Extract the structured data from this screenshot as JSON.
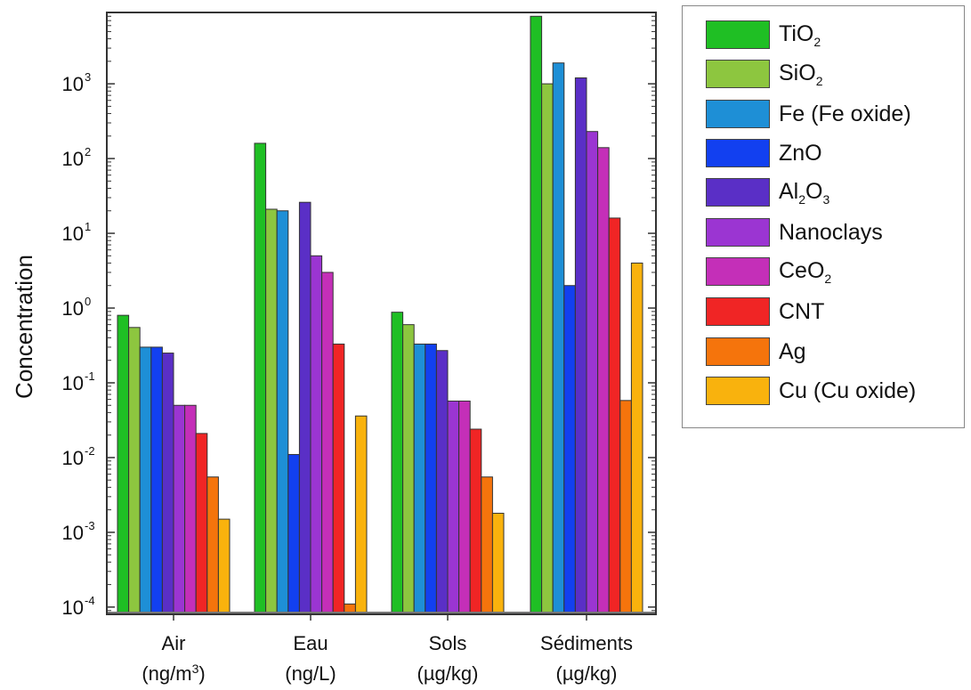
{
  "chart_data": {
    "type": "bar",
    "ylabel": "Concentration",
    "yscale": "log",
    "ylim": [
      8e-05,
      9000
    ],
    "y_tick_labels": [
      "10",
      "10",
      "10",
      "10",
      "10",
      "10",
      "10",
      "10"
    ],
    "y_tick_exponents": [
      "-4",
      "-3",
      "-2",
      "-1",
      "0",
      "1",
      "2",
      "3"
    ],
    "categories": [
      {
        "name": "Air",
        "unit": "(ng/m",
        "unit_sup": "3",
        "unit_end": ")"
      },
      {
        "name": "Eau",
        "unit": "(ng/L)",
        "unit_sup": "",
        "unit_end": ""
      },
      {
        "name": "Sols",
        "unit": "(µg/kg)",
        "unit_sup": "",
        "unit_end": ""
      },
      {
        "name": "Sédiments",
        "unit": "(µg/kg)",
        "unit_sup": "",
        "unit_end": ""
      }
    ],
    "series": [
      {
        "name": "TiO2",
        "label_main": "TiO",
        "label_sub": "2",
        "label_main2": "",
        "label_sub2": "",
        "color": "#1fbf24",
        "values": [
          0.8,
          160,
          0.88,
          8000
        ]
      },
      {
        "name": "SiO2",
        "label_main": "SiO",
        "label_sub": "2",
        "label_main2": "",
        "label_sub2": "",
        "color": "#8dc63f",
        "values": [
          0.55,
          21,
          0.6,
          1000
        ]
      },
      {
        "name": "Fe (Fe oxide)",
        "label_main": "Fe (Fe oxide)",
        "label_sub": "",
        "label_main2": "",
        "label_sub2": "",
        "color": "#1e8fd6",
        "values": [
          0.3,
          20,
          0.33,
          1900
        ]
      },
      {
        "name": "ZnO",
        "label_main": "ZnO",
        "label_sub": "",
        "label_main2": "",
        "label_sub2": "",
        "color": "#1240f0",
        "values": [
          0.3,
          0.011,
          0.33,
          2
        ]
      },
      {
        "name": "Al2O3",
        "label_main": "Al",
        "label_sub": "2",
        "label_main2": "O",
        "label_sub2": "3",
        "color": "#5a2fc6",
        "values": [
          0.25,
          26,
          0.27,
          1200
        ]
      },
      {
        "name": "Nanoclays",
        "label_main": "Nanoclays",
        "label_sub": "",
        "label_main2": "",
        "label_sub2": "",
        "color": "#9b35d2",
        "values": [
          0.05,
          5,
          0.057,
          230
        ]
      },
      {
        "name": "CeO2",
        "label_main": "CeO",
        "label_sub": "2",
        "label_main2": "",
        "label_sub2": "",
        "color": "#c42fb8",
        "values": [
          0.05,
          3,
          0.057,
          140
        ]
      },
      {
        "name": "CNT",
        "label_main": "CNT",
        "label_sub": "",
        "label_main2": "",
        "label_sub2": "",
        "color": "#f02525",
        "values": [
          0.021,
          0.33,
          0.024,
          16
        ]
      },
      {
        "name": "Ag",
        "label_main": "Ag",
        "label_sub": "",
        "label_main2": "",
        "label_sub2": "",
        "color": "#f5740c",
        "values": [
          0.0055,
          0.00011,
          0.0055,
          0.058
        ]
      },
      {
        "name": "Cu (Cu oxide)",
        "label_main": "Cu (Cu oxide)",
        "label_sub": "",
        "label_main2": "",
        "label_sub2": "",
        "color": "#f9b20d",
        "values": [
          0.0015,
          0.036,
          0.0018,
          4
        ]
      }
    ],
    "legend": "right-outside",
    "grid": false
  }
}
